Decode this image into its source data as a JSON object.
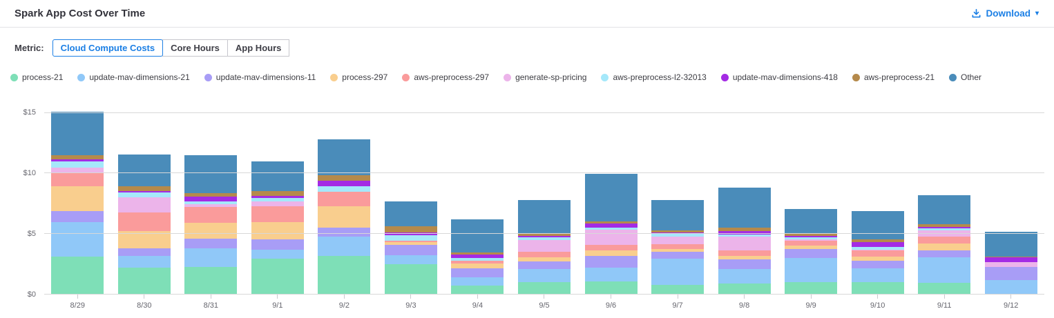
{
  "header": {
    "title": "Spark App Cost Over Time",
    "download_label": "Download"
  },
  "icons": {
    "download": "download-tray-arrow",
    "caret_glyph": "▾"
  },
  "metric": {
    "label": "Metric:",
    "tabs": [
      {
        "label": "Cloud Compute Costs",
        "active": true
      },
      {
        "label": "Core Hours",
        "active": false
      },
      {
        "label": "App Hours",
        "active": false
      }
    ]
  },
  "colors": {
    "accent_blue": "#1B7FE5",
    "grid": "#D8D8D8",
    "axis_text": "#65656D",
    "title_text": "#32323A",
    "tab_border": "#C6C6CC"
  },
  "chart_data": {
    "type": "bar",
    "stacked": true,
    "title": "Spark App Cost Over Time",
    "xlabel": "",
    "ylabel": "",
    "ylim": [
      0,
      15
    ],
    "yticks": [
      "$0",
      "$5",
      "$10",
      "$15"
    ],
    "grid": true,
    "legend_position": "top",
    "categories": [
      "8/29",
      "8/30",
      "8/31",
      "9/1",
      "9/2",
      "9/3",
      "9/4",
      "9/5",
      "9/6",
      "9/7",
      "9/8",
      "9/9",
      "9/10",
      "9/11",
      "9/12"
    ],
    "series": [
      {
        "name": "process-21",
        "color": "#7EDFB7",
        "values": [
          3.1,
          2.2,
          2.25,
          2.95,
          3.2,
          2.5,
          0.75,
          1.05,
          1.1,
          0.8,
          0.9,
          1.0,
          1.0,
          0.95,
          0
        ]
      },
      {
        "name": "update-mav-dimensions-21",
        "color": "#90C8F8",
        "values": [
          2.85,
          1.0,
          1.55,
          0.75,
          1.6,
          0.75,
          0.7,
          1.05,
          1.1,
          2.15,
          1.2,
          2.0,
          1.15,
          2.1,
          1.2
        ]
      },
      {
        "name": "update-mav-dimensions-11",
        "color": "#A89DF6",
        "values": [
          0.95,
          0.6,
          0.8,
          0.85,
          0.7,
          0.85,
          0.7,
          0.65,
          1.0,
          0.6,
          0.8,
          0.75,
          0.65,
          0.6,
          1.05
        ]
      },
      {
        "name": "process-297",
        "color": "#F9CE8E",
        "values": [
          2.05,
          1.45,
          1.3,
          1.4,
          1.75,
          0.2,
          0.4,
          0.3,
          0.45,
          0.2,
          0.3,
          0.3,
          0.3,
          0.55,
          0
        ]
      },
      {
        "name": "aws-preprocess-297",
        "color": "#FA9B9B",
        "values": [
          1.05,
          1.5,
          1.3,
          1.3,
          1.2,
          0.15,
          0.25,
          0.5,
          0.45,
          0.4,
          0.45,
          0.4,
          0.55,
          0.6,
          0
        ]
      },
      {
        "name": "generate-sp-pricing",
        "color": "#ECB4EA",
        "values": [
          0.45,
          1.25,
          0.25,
          0.4,
          0,
          0,
          0,
          0.95,
          1.25,
          0.65,
          1.15,
          0.1,
          0.05,
          0.5,
          0.4
        ]
      },
      {
        "name": "aws-preprocess-l2-32013",
        "color": "#A5E8FA",
        "values": [
          0.5,
          0.4,
          0.2,
          0.3,
          0.5,
          0.45,
          0.2,
          0.2,
          0.15,
          0.2,
          0.15,
          0.15,
          0.2,
          0.15,
          0
        ]
      },
      {
        "name": "update-mav-dimensions-418",
        "color": "#A42BE4",
        "values": [
          0.2,
          0.15,
          0.4,
          0.2,
          0.4,
          0.2,
          0.3,
          0.15,
          0.35,
          0.1,
          0.3,
          0.15,
          0.45,
          0.15,
          0.4
        ]
      },
      {
        "name": "aws-preprocess-21",
        "color": "#B58A4B",
        "values": [
          0.35,
          0.4,
          0.3,
          0.35,
          0.5,
          0.55,
          0.15,
          0.2,
          0.2,
          0.2,
          0.25,
          0.15,
          0.2,
          0.2,
          0.05
        ]
      },
      {
        "name": "Other",
        "color": "#4A8CBA",
        "values": [
          3.55,
          2.6,
          3.15,
          2.45,
          2.95,
          2.05,
          2.75,
          2.75,
          3.9,
          2.5,
          3.3,
          2.05,
          2.35,
          2.4,
          2.05
        ]
      }
    ]
  }
}
